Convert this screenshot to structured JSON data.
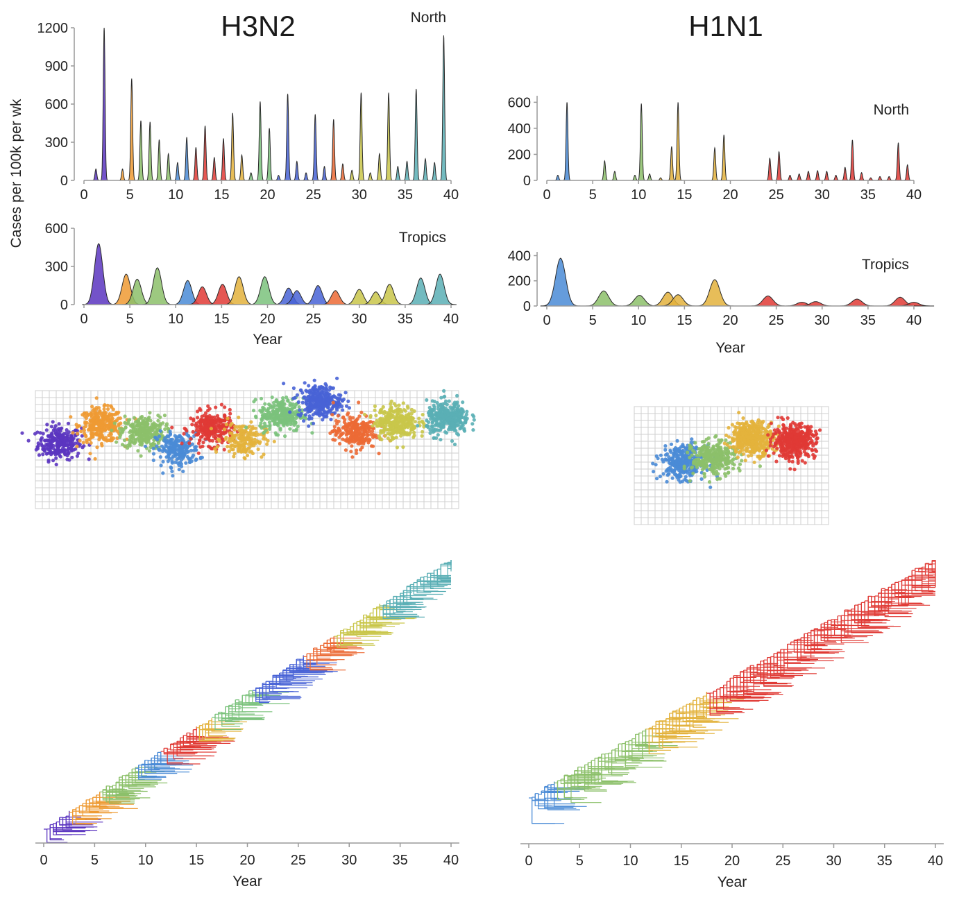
{
  "panel_titles": {
    "left": "H3N2",
    "right": "H1N1"
  },
  "shared_ylabel": "Cases per 100k per wk",
  "colors": {
    "purple": "#5B35C0",
    "orange": "#EE9A33",
    "green": "#8CC06A",
    "blue": "#4A8BD6",
    "red": "#E03A35",
    "gold": "#E3B23C",
    "mint": "#7BC27C",
    "royal": "#4863D6",
    "redorange": "#EC6A35",
    "olive": "#C9C64A",
    "teal": "#5AAFB5",
    "yellowgold": "#D9BE3A"
  },
  "chart_data": [
    {
      "id": "h3n2_north",
      "type": "area",
      "region_label": "North",
      "xlabel": "",
      "ylabel": "Cases per 100k per wk",
      "xlim": [
        0,
        40
      ],
      "ylim": [
        0,
        1200
      ],
      "xticks": [
        "0",
        "5",
        "10",
        "15",
        "20",
        "25",
        "30",
        "35",
        "40"
      ],
      "yticks": [
        "0",
        "300",
        "600",
        "900",
        "1200"
      ],
      "peaks": [
        {
          "x": 1.3,
          "y": 90,
          "c": "purple"
        },
        {
          "x": 2.2,
          "y": 1200,
          "c": "purple"
        },
        {
          "x": 4.2,
          "y": 90,
          "c": "orange"
        },
        {
          "x": 5.2,
          "y": 800,
          "c": "orange"
        },
        {
          "x": 6.2,
          "y": 470,
          "c": "green"
        },
        {
          "x": 7.2,
          "y": 460,
          "c": "green"
        },
        {
          "x": 8.2,
          "y": 320,
          "c": "green"
        },
        {
          "x": 9.2,
          "y": 210,
          "c": "green"
        },
        {
          "x": 10.2,
          "y": 140,
          "c": "blue"
        },
        {
          "x": 11.2,
          "y": 340,
          "c": "blue"
        },
        {
          "x": 12.2,
          "y": 260,
          "c": "red"
        },
        {
          "x": 13.2,
          "y": 430,
          "c": "red"
        },
        {
          "x": 14.2,
          "y": 180,
          "c": "red"
        },
        {
          "x": 15.2,
          "y": 330,
          "c": "red"
        },
        {
          "x": 16.2,
          "y": 530,
          "c": "gold"
        },
        {
          "x": 17.2,
          "y": 200,
          "c": "gold"
        },
        {
          "x": 18.2,
          "y": 60,
          "c": "mint"
        },
        {
          "x": 19.2,
          "y": 620,
          "c": "mint"
        },
        {
          "x": 20.2,
          "y": 410,
          "c": "mint"
        },
        {
          "x": 21.2,
          "y": 40,
          "c": "royal"
        },
        {
          "x": 22.2,
          "y": 680,
          "c": "royal"
        },
        {
          "x": 23.2,
          "y": 150,
          "c": "royal"
        },
        {
          "x": 24.2,
          "y": 60,
          "c": "royal"
        },
        {
          "x": 25.2,
          "y": 520,
          "c": "royal"
        },
        {
          "x": 26.2,
          "y": 110,
          "c": "royal"
        },
        {
          "x": 27.2,
          "y": 480,
          "c": "redorange"
        },
        {
          "x": 28.2,
          "y": 130,
          "c": "redorange"
        },
        {
          "x": 29.2,
          "y": 80,
          "c": "olive"
        },
        {
          "x": 30.2,
          "y": 690,
          "c": "olive"
        },
        {
          "x": 31.2,
          "y": 60,
          "c": "olive"
        },
        {
          "x": 32.2,
          "y": 210,
          "c": "olive"
        },
        {
          "x": 33.2,
          "y": 690,
          "c": "olive"
        },
        {
          "x": 34.2,
          "y": 110,
          "c": "teal"
        },
        {
          "x": 35.2,
          "y": 150,
          "c": "teal"
        },
        {
          "x": 36.2,
          "y": 720,
          "c": "teal"
        },
        {
          "x": 37.2,
          "y": 170,
          "c": "teal"
        },
        {
          "x": 38.2,
          "y": 140,
          "c": "teal"
        },
        {
          "x": 39.2,
          "y": 1140,
          "c": "teal"
        }
      ],
      "peak_width": 0.1
    },
    {
      "id": "h3n2_tropics",
      "type": "area",
      "region_label": "Tropics",
      "xlabel": "Year",
      "ylabel": "Cases per 100k per wk",
      "xlim": [
        0,
        40
      ],
      "ylim": [
        0,
        600
      ],
      "xticks": [
        "0",
        "5",
        "10",
        "15",
        "20",
        "25",
        "30",
        "35",
        "40"
      ],
      "yticks": [
        "0",
        "300",
        "600"
      ],
      "peaks": [
        {
          "x": 1.6,
          "y": 480,
          "c": "purple"
        },
        {
          "x": 4.6,
          "y": 240,
          "c": "orange"
        },
        {
          "x": 5.8,
          "y": 200,
          "c": "green"
        },
        {
          "x": 8.0,
          "y": 290,
          "c": "green"
        },
        {
          "x": 11.3,
          "y": 190,
          "c": "blue"
        },
        {
          "x": 12.9,
          "y": 140,
          "c": "red"
        },
        {
          "x": 15.1,
          "y": 160,
          "c": "red"
        },
        {
          "x": 16.9,
          "y": 220,
          "c": "gold"
        },
        {
          "x": 19.7,
          "y": 220,
          "c": "mint"
        },
        {
          "x": 22.3,
          "y": 130,
          "c": "royal"
        },
        {
          "x": 23.2,
          "y": 110,
          "c": "royal"
        },
        {
          "x": 25.5,
          "y": 150,
          "c": "royal"
        },
        {
          "x": 27.4,
          "y": 110,
          "c": "redorange"
        },
        {
          "x": 30.0,
          "y": 120,
          "c": "olive"
        },
        {
          "x": 31.8,
          "y": 100,
          "c": "olive"
        },
        {
          "x": 33.3,
          "y": 160,
          "c": "olive"
        },
        {
          "x": 36.7,
          "y": 210,
          "c": "teal"
        },
        {
          "x": 38.8,
          "y": 240,
          "c": "teal"
        }
      ],
      "peak_width": 0.45
    },
    {
      "id": "h1n1_north",
      "type": "area",
      "region_label": "North",
      "xlabel": "",
      "ylabel": "",
      "xlim": [
        0,
        40
      ],
      "ylim": [
        0,
        650
      ],
      "xticks": [
        "0",
        "5",
        "10",
        "15",
        "20",
        "25",
        "30",
        "35",
        "40"
      ],
      "yticks": [
        "0",
        "200",
        "400",
        "600"
      ],
      "peaks": [
        {
          "x": 1.2,
          "y": 40,
          "c": "blue"
        },
        {
          "x": 2.2,
          "y": 600,
          "c": "blue"
        },
        {
          "x": 6.3,
          "y": 150,
          "c": "green"
        },
        {
          "x": 7.4,
          "y": 70,
          "c": "green"
        },
        {
          "x": 9.6,
          "y": 40,
          "c": "green"
        },
        {
          "x": 10.3,
          "y": 590,
          "c": "green"
        },
        {
          "x": 11.2,
          "y": 50,
          "c": "green"
        },
        {
          "x": 12.4,
          "y": 20,
          "c": "gold"
        },
        {
          "x": 13.6,
          "y": 260,
          "c": "gold"
        },
        {
          "x": 14.3,
          "y": 600,
          "c": "gold"
        },
        {
          "x": 18.3,
          "y": 250,
          "c": "gold"
        },
        {
          "x": 19.3,
          "y": 350,
          "c": "gold"
        },
        {
          "x": 24.3,
          "y": 170,
          "c": "red"
        },
        {
          "x": 25.3,
          "y": 220,
          "c": "red"
        },
        {
          "x": 26.5,
          "y": 40,
          "c": "red"
        },
        {
          "x": 27.5,
          "y": 50,
          "c": "red"
        },
        {
          "x": 28.5,
          "y": 70,
          "c": "red"
        },
        {
          "x": 29.5,
          "y": 75,
          "c": "red"
        },
        {
          "x": 30.5,
          "y": 70,
          "c": "red"
        },
        {
          "x": 31.5,
          "y": 40,
          "c": "red"
        },
        {
          "x": 32.5,
          "y": 100,
          "c": "red"
        },
        {
          "x": 33.3,
          "y": 310,
          "c": "red"
        },
        {
          "x": 34.3,
          "y": 60,
          "c": "red"
        },
        {
          "x": 35.3,
          "y": 20,
          "c": "red"
        },
        {
          "x": 36.3,
          "y": 30,
          "c": "red"
        },
        {
          "x": 37.3,
          "y": 30,
          "c": "red"
        },
        {
          "x": 38.3,
          "y": 290,
          "c": "red"
        },
        {
          "x": 39.3,
          "y": 120,
          "c": "red"
        }
      ],
      "peak_width": 0.1
    },
    {
      "id": "h1n1_tropics",
      "type": "area",
      "region_label": "Tropics",
      "xlabel": "Year",
      "ylabel": "",
      "xlim": [
        0,
        40
      ],
      "ylim": [
        0,
        430
      ],
      "xticks": [
        "0",
        "5",
        "10",
        "15",
        "20",
        "25",
        "30",
        "35",
        "40"
      ],
      "yticks": [
        "0",
        "200",
        "400"
      ],
      "peaks": [
        {
          "x": 1.5,
          "y": 380,
          "c": "blue"
        },
        {
          "x": 6.2,
          "y": 120,
          "c": "green"
        },
        {
          "x": 10.1,
          "y": 85,
          "c": "green"
        },
        {
          "x": 13.2,
          "y": 110,
          "c": "gold"
        },
        {
          "x": 14.3,
          "y": 90,
          "c": "gold"
        },
        {
          "x": 18.3,
          "y": 210,
          "c": "gold"
        },
        {
          "x": 24.1,
          "y": 80,
          "c": "red"
        },
        {
          "x": 27.8,
          "y": 30,
          "c": "red"
        },
        {
          "x": 29.3,
          "y": 35,
          "c": "red"
        },
        {
          "x": 33.8,
          "y": 55,
          "c": "red"
        },
        {
          "x": 38.5,
          "y": 70,
          "c": "red"
        },
        {
          "x": 40.0,
          "y": 30,
          "c": "red"
        }
      ],
      "peak_width": 0.55
    },
    {
      "id": "h3n2_antigenic_map",
      "type": "scatter",
      "clusters": [
        {
          "c": "purple",
          "x": 3.5,
          "y": 9.5,
          "n": 260
        },
        {
          "c": "orange",
          "x": 9.5,
          "y": 12.0,
          "n": 300
        },
        {
          "c": "green",
          "x": 15.5,
          "y": 11.0,
          "n": 280
        },
        {
          "c": "blue",
          "x": 20.5,
          "y": 8.5,
          "n": 220
        },
        {
          "c": "red",
          "x": 25.5,
          "y": 11.5,
          "n": 280
        },
        {
          "c": "gold",
          "x": 30.0,
          "y": 10.0,
          "n": 180
        },
        {
          "c": "mint",
          "x": 35.5,
          "y": 13.5,
          "n": 280
        },
        {
          "c": "royal",
          "x": 41.0,
          "y": 15.5,
          "n": 300
        },
        {
          "c": "redorange",
          "x": 46.0,
          "y": 11.0,
          "n": 240
        },
        {
          "c": "olive",
          "x": 52.0,
          "y": 12.5,
          "n": 300
        },
        {
          "c": "teal",
          "x": 59.5,
          "y": 13.0,
          "n": 320
        }
      ]
    },
    {
      "id": "h1n1_antigenic_map",
      "type": "scatter",
      "clusters": [
        {
          "c": "blue",
          "x": 7.0,
          "y": 9.0,
          "n": 320
        },
        {
          "c": "green",
          "x": 11.5,
          "y": 9.5,
          "n": 320
        },
        {
          "c": "gold",
          "x": 17.0,
          "y": 12.5,
          "n": 420
        },
        {
          "c": "red",
          "x": 23.0,
          "y": 12.0,
          "n": 420
        }
      ]
    },
    {
      "id": "h3n2_phylogeny",
      "type": "line",
      "xlabel": "Year",
      "xlim": [
        0,
        40
      ],
      "xticks": [
        "0",
        "5",
        "10",
        "15",
        "20",
        "25",
        "30",
        "35",
        "40"
      ],
      "segments": [
        {
          "x0": 0,
          "x1": 2.5,
          "c": "purple"
        },
        {
          "x0": 2.5,
          "x1": 5.5,
          "c": "orange"
        },
        {
          "x0": 5.5,
          "x1": 9.0,
          "c": "green"
        },
        {
          "x0": 9.0,
          "x1": 11.5,
          "c": "blue"
        },
        {
          "x0": 11.5,
          "x1": 15.0,
          "c": "red"
        },
        {
          "x0": 15.0,
          "x1": 16.5,
          "c": "gold"
        },
        {
          "x0": 16.5,
          "x1": 20.5,
          "c": "mint"
        },
        {
          "x0": 20.5,
          "x1": 25.5,
          "c": "royal"
        },
        {
          "x0": 25.5,
          "x1": 28.5,
          "c": "redorange"
        },
        {
          "x0": 28.5,
          "x1": 33.0,
          "c": "olive"
        },
        {
          "x0": 33.0,
          "x1": 40.0,
          "c": "teal"
        }
      ]
    },
    {
      "id": "h1n1_phylogeny",
      "type": "line",
      "xlabel": "Year",
      "xlim": [
        0,
        40
      ],
      "xticks": [
        "0",
        "5",
        "10",
        "15",
        "20",
        "25",
        "30",
        "35",
        "40"
      ],
      "segments": [
        {
          "x0": 0,
          "x1": 2.5,
          "c": "blue"
        },
        {
          "x0": 2.5,
          "x1": 11.5,
          "c": "green"
        },
        {
          "x0": 11.5,
          "x1": 17.5,
          "c": "gold"
        },
        {
          "x0": 17.5,
          "x1": 40.0,
          "c": "red"
        }
      ]
    }
  ]
}
